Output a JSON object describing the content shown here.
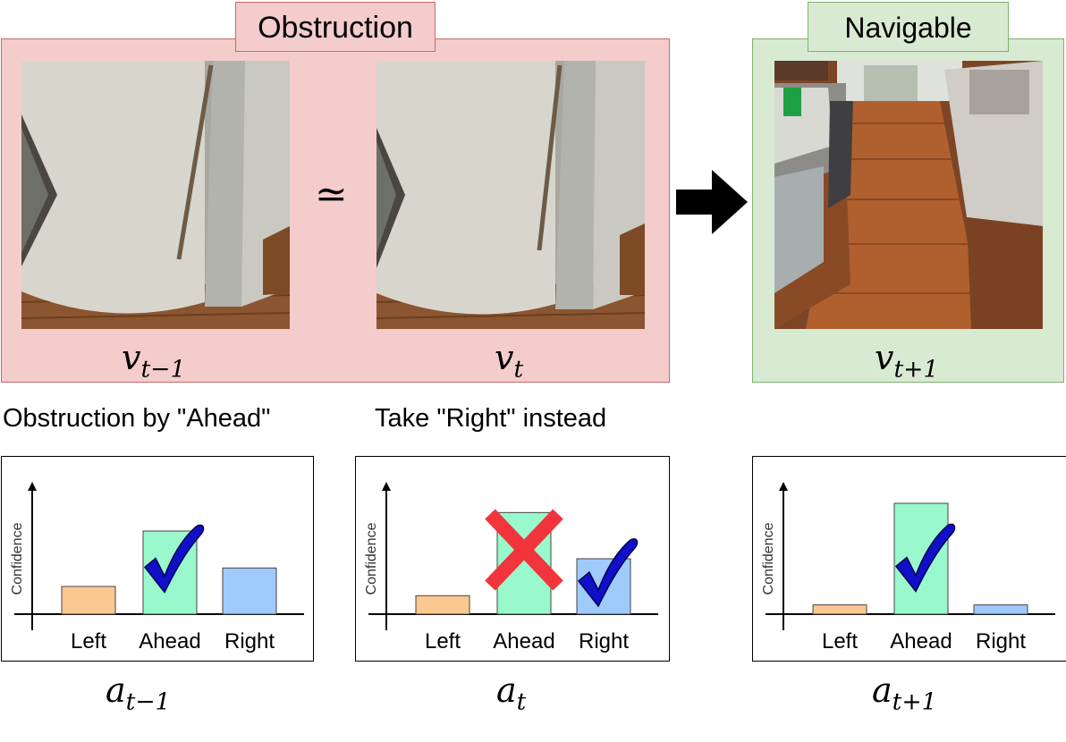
{
  "top": {
    "obstruction_label": "Obstruction",
    "navigable_label": "Navigable",
    "approx_symbol": "≃",
    "frames": [
      {
        "var": "v",
        "sub": "t−1"
      },
      {
        "var": "v",
        "sub": "t"
      },
      {
        "var": "v",
        "sub": "t+1"
      }
    ]
  },
  "captions": {
    "left": "Obstruction by \"Ahead\"",
    "middle": "Take \"Right\" instead"
  },
  "colors": {
    "obstruction_bg": "#f4cccc",
    "navigable_bg": "#d9ead3",
    "left_bar": "#fcc891",
    "ahead_bar": "#99f8cc",
    "right_bar": "#9ecbfb",
    "check": "#1010c8",
    "cross": "#f2343c"
  },
  "chart_data": [
    {
      "type": "bar",
      "ylabel": "Confidence",
      "categories": [
        "Left",
        "Ahead",
        "Right"
      ],
      "values": [
        0.3,
        0.9,
        0.5
      ],
      "ylim": [
        0,
        1.2
      ],
      "marks": {
        "Ahead": "check-icon"
      },
      "action": {
        "var": "a",
        "sub": "t−1"
      }
    },
    {
      "type": "bar",
      "ylabel": "Confidence",
      "categories": [
        "Left",
        "Ahead",
        "Right"
      ],
      "values": [
        0.2,
        1.1,
        0.6
      ],
      "ylim": [
        0,
        1.2
      ],
      "marks": {
        "Ahead": "cross-icon",
        "Right": "check-icon"
      },
      "action": {
        "var": "a",
        "sub": "t"
      }
    },
    {
      "type": "bar",
      "ylabel": "Confidence",
      "categories": [
        "Left",
        "Ahead",
        "Right"
      ],
      "values": [
        0.1,
        1.2,
        0.1
      ],
      "ylim": [
        0,
        1.2
      ],
      "marks": {
        "Ahead": "check-icon"
      },
      "action": {
        "var": "a",
        "sub": "t+1"
      }
    }
  ]
}
